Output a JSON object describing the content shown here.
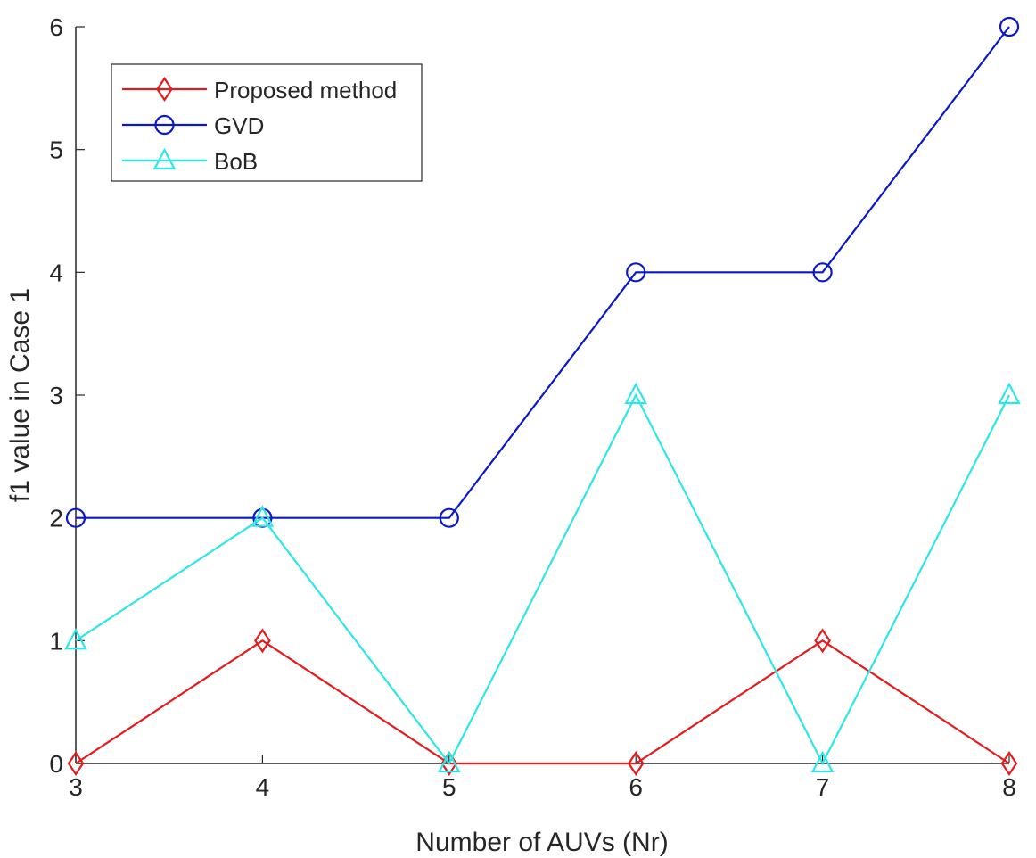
{
  "chart_data": {
    "type": "line",
    "x": [
      3,
      4,
      5,
      6,
      7,
      8
    ],
    "xlim": [
      3,
      8
    ],
    "ylim": [
      0,
      6
    ],
    "xticks": [
      3,
      4,
      5,
      6,
      7,
      8
    ],
    "yticks": [
      0,
      1,
      2,
      3,
      4,
      5,
      6
    ],
    "xlabel": "Number of AUVs (Nr)",
    "ylabel": "f1 value in Case 1",
    "legend_position": "top-left",
    "grid": false,
    "series": [
      {
        "name": "Proposed method",
        "values": [
          0,
          1,
          0,
          0,
          1,
          0
        ],
        "color": "#e41a1c",
        "marker": "diamond"
      },
      {
        "name": "GVD",
        "values": [
          2,
          2,
          2,
          4,
          4,
          6
        ],
        "color": "#0a18c8",
        "marker": "circle"
      },
      {
        "name": "BoB",
        "values": [
          1,
          2,
          0,
          3,
          0,
          3
        ],
        "color": "#2ee6e6",
        "marker": "triangle"
      }
    ]
  }
}
